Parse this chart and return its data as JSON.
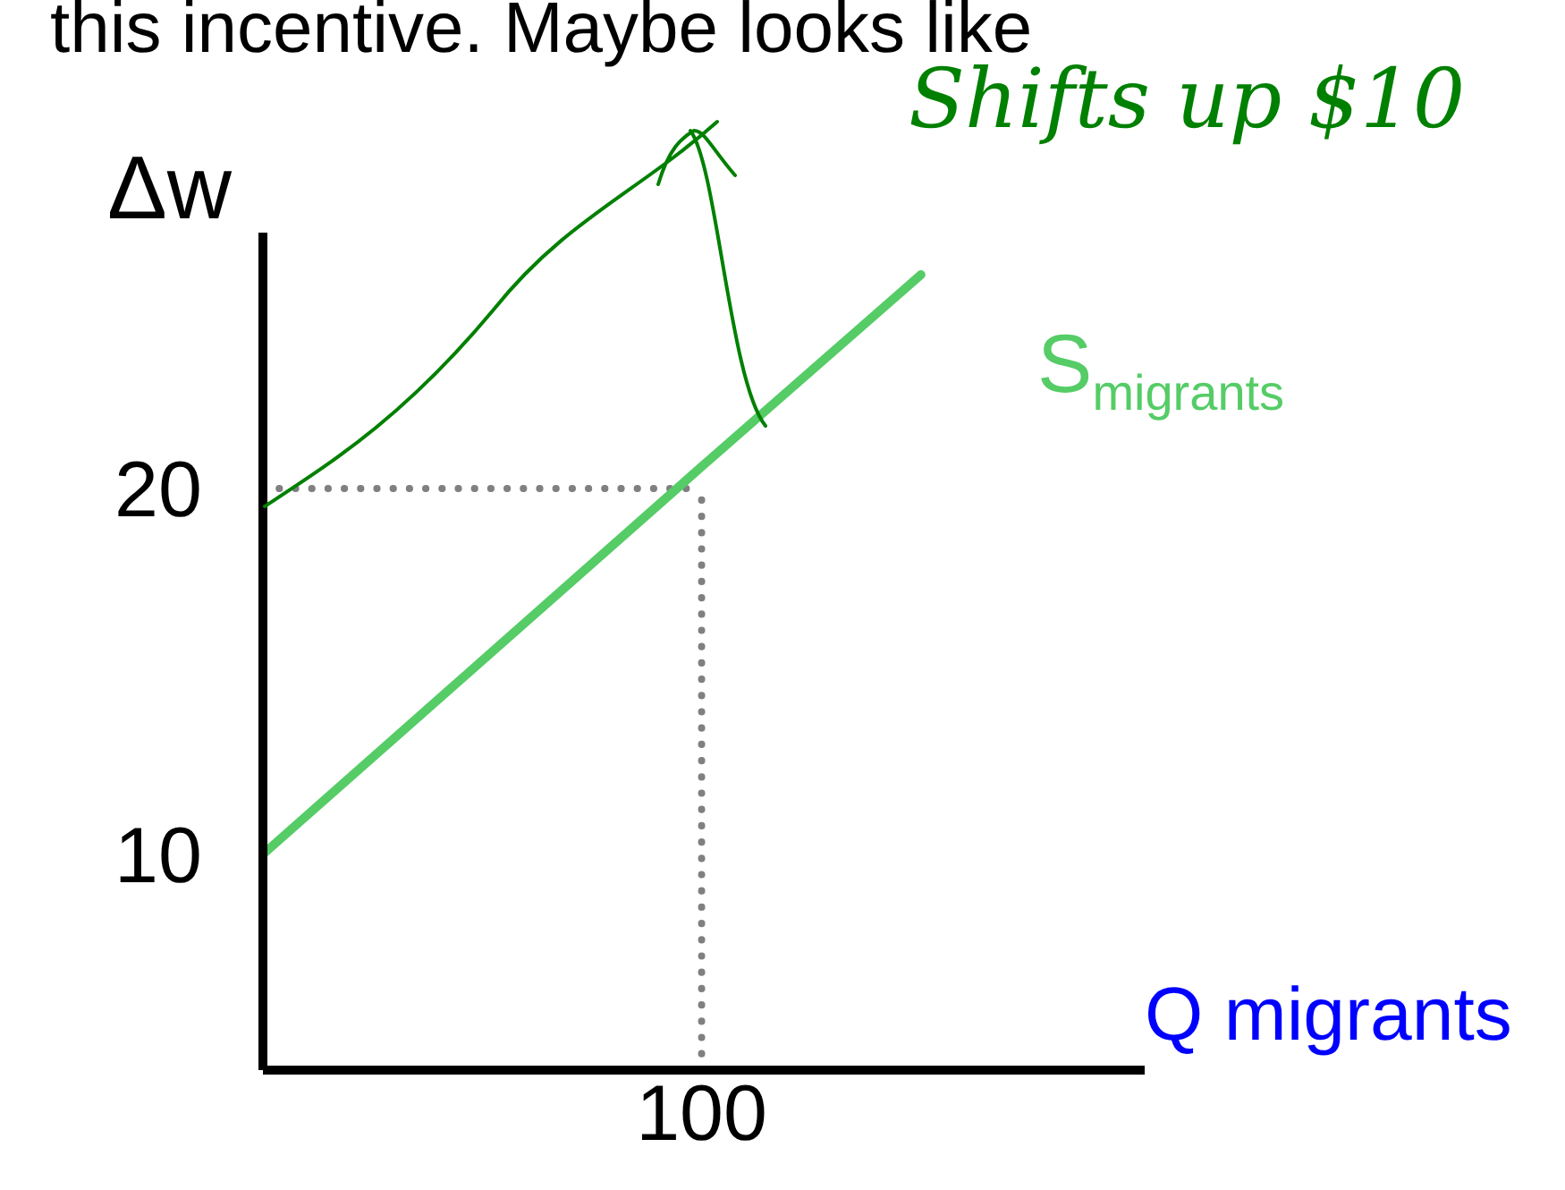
{
  "chart_data": {
    "type": "line",
    "title": "this incentive. Maybe looks like",
    "ylabel": "Δw",
    "xlabel": "Q migrants",
    "annotations": [
      "Shifts up $10"
    ],
    "categories": [
      null,
      null,
      "100",
      null
    ],
    "series": [
      {
        "name": "S$_{migrants}$",
        "color": "#55cc66",
        "values": [
          10,
          15.3,
          20.6,
          25.85
        ]
      }
    ],
    "ref_lines": [
      {
        "axis": "y",
        "value": 20,
        "color": "#808080",
        "line_style": "dotted"
      },
      {
        "axis": "x",
        "value": "100",
        "color": "#808080",
        "line_style": "dotted"
      }
    ],
    "ylim": [
      4.1,
      27
    ],
    "yticks": [
      10,
      20
    ],
    "grid": false,
    "legend": false,
    "marker": "none",
    "line_style": "solid"
  }
}
